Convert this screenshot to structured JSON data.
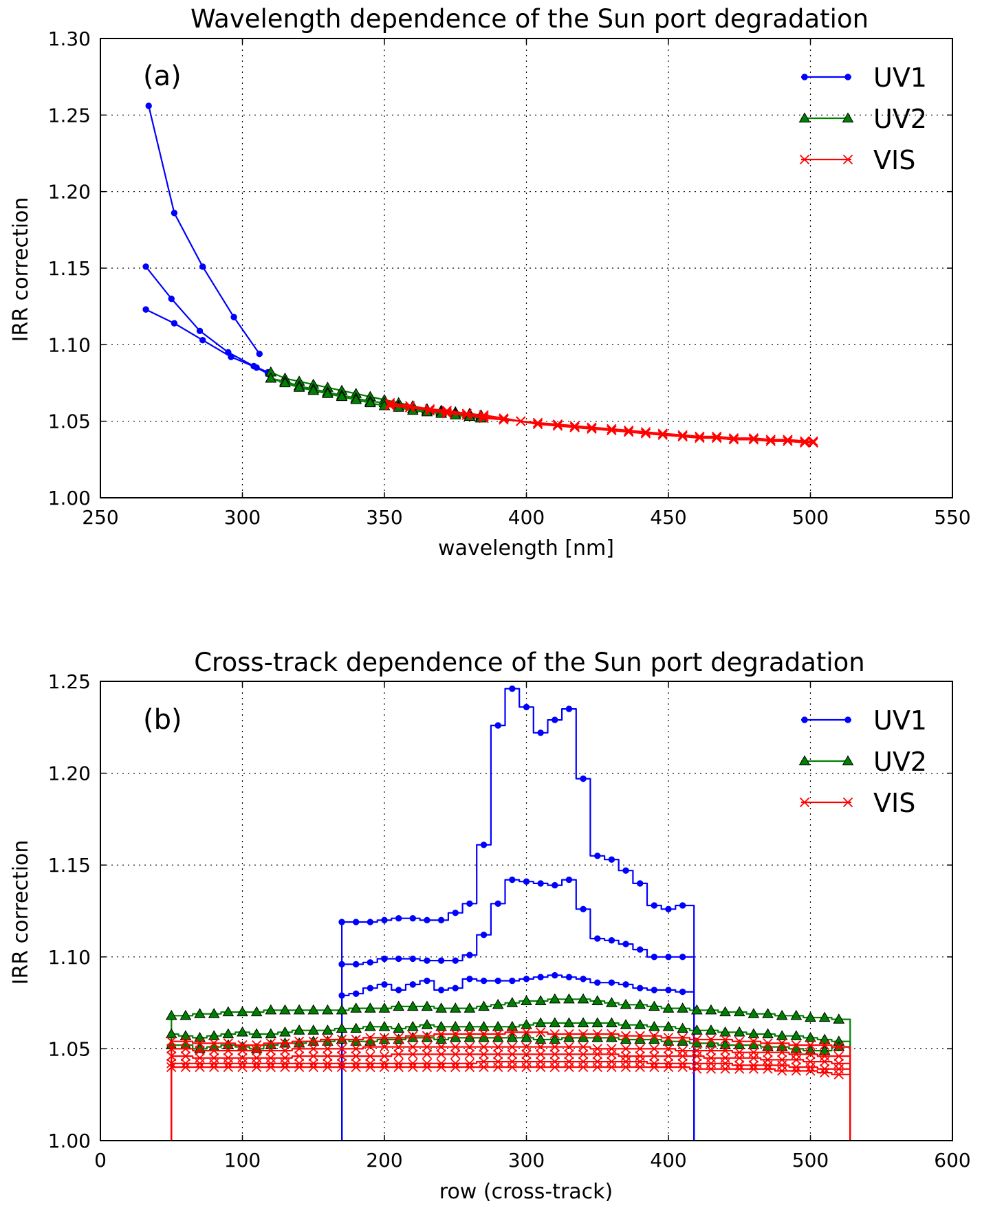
{
  "figure": {
    "colors": {
      "UV1": "#0000ff",
      "UV2": "#008000",
      "VIS": "#ff0000"
    }
  },
  "chart_data": [
    {
      "type": "line",
      "panel_label": "(a)",
      "title": "Wavelength dependence of the Sun port degradation",
      "xlabel": "wavelength [nm]",
      "ylabel": "IRR correction",
      "xlim": [
        250,
        550
      ],
      "ylim": [
        1.0,
        1.3
      ],
      "xticks": [
        "250",
        "300",
        "350",
        "400",
        "450",
        "500",
        "550"
      ],
      "yticks": [
        "1.00",
        "1.05",
        "1.10",
        "1.15",
        "1.20",
        "1.25",
        "1.30"
      ],
      "grid": true,
      "legend_position": "top-right",
      "legend": [
        "UV1",
        "UV2",
        "VIS"
      ],
      "series": [
        {
          "name": "UV1",
          "marker": "dot",
          "x": [
            267,
            276,
            286,
            297,
            306
          ],
          "y": [
            1.256,
            1.186,
            1.151,
            1.118,
            1.094
          ]
        },
        {
          "name": "UV1",
          "marker": "dot",
          "x": [
            266,
            275,
            285,
            295,
            304,
            309
          ],
          "y": [
            1.151,
            1.13,
            1.109,
            1.095,
            1.086,
            1.082
          ]
        },
        {
          "name": "UV1",
          "marker": "dot",
          "x": [
            266,
            276,
            286,
            296,
            305,
            309
          ],
          "y": [
            1.123,
            1.114,
            1.103,
            1.092,
            1.085,
            1.081
          ]
        },
        {
          "name": "UV2",
          "marker": "triangle",
          "x": [
            310,
            315,
            320,
            325,
            330,
            335,
            340,
            345,
            350,
            355,
            360,
            365,
            370,
            375,
            380,
            384
          ],
          "y": [
            1.082,
            1.078,
            1.076,
            1.074,
            1.072,
            1.07,
            1.068,
            1.066,
            1.064,
            1.062,
            1.06,
            1.058,
            1.057,
            1.056,
            1.055,
            1.054
          ]
        },
        {
          "name": "UV2",
          "marker": "triangle",
          "x": [
            310,
            315,
            320,
            325,
            330,
            335,
            340,
            345,
            350,
            355,
            360,
            365,
            370,
            375,
            380,
            384
          ],
          "y": [
            1.078,
            1.076,
            1.073,
            1.071,
            1.069,
            1.067,
            1.065,
            1.063,
            1.062,
            1.06,
            1.058,
            1.057,
            1.056,
            1.055,
            1.054,
            1.053
          ]
        },
        {
          "name": "UV2",
          "marker": "triangle",
          "x": [
            310,
            315,
            320,
            325,
            330,
            335,
            340,
            345,
            350,
            355,
            360,
            365,
            370,
            375,
            380,
            384
          ],
          "y": [
            1.078,
            1.075,
            1.072,
            1.07,
            1.068,
            1.066,
            1.064,
            1.062,
            1.06,
            1.059,
            1.057,
            1.056,
            1.055,
            1.054,
            1.053,
            1.052
          ]
        },
        {
          "name": "VIS",
          "marker": "x",
          "x": [
            352,
            359,
            366,
            372,
            379,
            385,
            392,
            398,
            404,
            411,
            417,
            423,
            430,
            436,
            442,
            448,
            455,
            461,
            467,
            473,
            480,
            486,
            492,
            498,
            501
          ],
          "y": [
            1.062,
            1.06,
            1.058,
            1.057,
            1.055,
            1.054,
            1.052,
            1.05,
            1.049,
            1.048,
            1.047,
            1.046,
            1.045,
            1.044,
            1.043,
            1.042,
            1.041,
            1.04,
            1.04,
            1.039,
            1.039,
            1.038,
            1.038,
            1.037,
            1.037
          ]
        },
        {
          "name": "VIS",
          "marker": "x",
          "x": [
            352,
            359,
            366,
            372,
            379,
            385,
            392,
            398,
            404,
            411,
            417,
            423,
            430,
            436,
            442,
            448,
            455,
            461,
            467,
            473,
            480,
            486,
            492,
            498,
            501
          ],
          "y": [
            1.06,
            1.059,
            1.057,
            1.055,
            1.054,
            1.052,
            1.051,
            1.05,
            1.048,
            1.047,
            1.046,
            1.045,
            1.044,
            1.043,
            1.042,
            1.041,
            1.04,
            1.039,
            1.039,
            1.038,
            1.038,
            1.037,
            1.037,
            1.036,
            1.036
          ]
        },
        {
          "name": "VIS",
          "marker": "x",
          "x": [
            352,
            359,
            366,
            372,
            379,
            385,
            392,
            398,
            404,
            411,
            417,
            423,
            430,
            436,
            442,
            448,
            455,
            461,
            467,
            473,
            480,
            486,
            492,
            498,
            501
          ],
          "y": [
            1.061,
            1.059,
            1.057,
            1.056,
            1.054,
            1.053,
            1.051,
            1.05,
            1.049,
            1.047,
            1.046,
            1.045,
            1.044,
            1.043,
            1.042,
            1.041,
            1.04,
            1.04,
            1.039,
            1.038,
            1.038,
            1.037,
            1.037,
            1.036,
            1.036
          ]
        }
      ]
    },
    {
      "type": "line",
      "panel_label": "(b)",
      "title": "Cross-track dependence of the Sun port degradation",
      "xlabel": "row (cross-track)",
      "ylabel": "IRR correction",
      "xlim": [
        0,
        600
      ],
      "ylim": [
        1.0,
        1.25
      ],
      "xticks": [
        "0",
        "100",
        "200",
        "300",
        "400",
        "500",
        "600"
      ],
      "yticks": [
        "1.00",
        "1.05",
        "1.10",
        "1.15",
        "1.20",
        "1.25"
      ],
      "grid": true,
      "legend_position": "top-right",
      "legend": [
        "UV1",
        "UV2",
        "VIS"
      ],
      "series": [
        {
          "name": "UV1",
          "marker": "dot",
          "x_start": 170,
          "x_step": 10,
          "y": [
            1.119,
            1.119,
            1.119,
            1.12,
            1.121,
            1.121,
            1.12,
            1.12,
            1.124,
            1.129,
            1.161,
            1.226,
            1.246,
            1.236,
            1.222,
            1.229,
            1.235,
            1.197,
            1.155,
            1.153,
            1.147,
            1.14,
            1.128,
            1.126,
            1.128
          ]
        },
        {
          "name": "UV1",
          "marker": "dot",
          "x_start": 170,
          "x_step": 10,
          "y": [
            1.096,
            1.096,
            1.097,
            1.099,
            1.099,
            1.099,
            1.098,
            1.098,
            1.098,
            1.101,
            1.112,
            1.129,
            1.142,
            1.141,
            1.14,
            1.139,
            1.142,
            1.126,
            1.11,
            1.109,
            1.107,
            1.104,
            1.1,
            1.1,
            1.1
          ]
        },
        {
          "name": "UV1",
          "marker": "dot",
          "x_start": 170,
          "x_step": 10,
          "y": [
            1.079,
            1.08,
            1.083,
            1.085,
            1.082,
            1.085,
            1.087,
            1.082,
            1.083,
            1.088,
            1.087,
            1.087,
            1.087,
            1.088,
            1.089,
            1.09,
            1.089,
            1.088,
            1.086,
            1.086,
            1.085,
            1.083,
            1.082,
            1.082,
            1.081
          ]
        },
        {
          "name": "UV2",
          "marker": "triangle",
          "x_start": 50,
          "x_step": 10,
          "y": [
            1.068,
            1.068,
            1.069,
            1.069,
            1.07,
            1.07,
            1.07,
            1.071,
            1.071,
            1.071,
            1.071,
            1.071,
            1.071,
            1.072,
            1.072,
            1.072,
            1.073,
            1.073,
            1.073,
            1.072,
            1.072,
            1.072,
            1.073,
            1.074,
            1.075,
            1.076,
            1.076,
            1.077,
            1.077,
            1.077,
            1.076,
            1.075,
            1.074,
            1.074,
            1.073,
            1.072,
            1.072,
            1.071,
            1.071,
            1.07,
            1.07,
            1.069,
            1.069,
            1.068,
            1.068,
            1.067,
            1.067,
            1.066
          ]
        },
        {
          "name": "UV2",
          "marker": "triangle",
          "x_start": 50,
          "x_step": 10,
          "y": [
            1.058,
            1.057,
            1.056,
            1.057,
            1.058,
            1.059,
            1.058,
            1.058,
            1.059,
            1.06,
            1.06,
            1.06,
            1.061,
            1.061,
            1.062,
            1.062,
            1.061,
            1.062,
            1.063,
            1.062,
            1.062,
            1.062,
            1.062,
            1.062,
            1.062,
            1.063,
            1.064,
            1.064,
            1.064,
            1.064,
            1.064,
            1.064,
            1.063,
            1.063,
            1.062,
            1.062,
            1.061,
            1.06,
            1.06,
            1.059,
            1.059,
            1.058,
            1.058,
            1.057,
            1.057,
            1.056,
            1.055,
            1.054
          ]
        },
        {
          "name": "UV2",
          "marker": "triangle",
          "x_start": 50,
          "x_step": 10,
          "y": [
            1.052,
            1.052,
            1.05,
            1.051,
            1.052,
            1.051,
            1.05,
            1.052,
            1.053,
            1.053,
            1.054,
            1.054,
            1.055,
            1.054,
            1.054,
            1.055,
            1.055,
            1.056,
            1.056,
            1.055,
            1.056,
            1.056,
            1.056,
            1.056,
            1.056,
            1.056,
            1.055,
            1.055,
            1.056,
            1.056,
            1.056,
            1.056,
            1.055,
            1.055,
            1.055,
            1.054,
            1.054,
            1.053,
            1.053,
            1.052,
            1.052,
            1.052,
            1.051,
            1.051,
            1.05,
            1.049,
            1.049,
            1.051
          ]
        },
        {
          "name": "VIS",
          "marker": "x",
          "x_start": 50,
          "x_step": 10,
          "y": [
            1.054,
            1.054,
            1.053,
            1.053,
            1.053,
            1.052,
            1.052,
            1.053,
            1.053,
            1.054,
            1.054,
            1.055,
            1.055,
            1.055,
            1.056,
            1.056,
            1.056,
            1.057,
            1.057,
            1.058,
            1.058,
            1.058,
            1.058,
            1.058,
            1.059,
            1.059,
            1.059,
            1.058,
            1.058,
            1.058,
            1.058,
            1.058,
            1.057,
            1.057,
            1.057,
            1.056,
            1.056,
            1.055,
            1.055,
            1.055,
            1.054,
            1.054,
            1.053,
            1.053,
            1.052,
            1.052,
            1.052,
            1.051
          ]
        },
        {
          "name": "VIS",
          "marker": "x",
          "x_start": 50,
          "x_step": 10,
          "y": [
            1.05,
            1.05,
            1.049,
            1.049,
            1.049,
            1.049,
            1.049,
            1.049,
            1.049,
            1.05,
            1.05,
            1.05,
            1.05,
            1.05,
            1.051,
            1.051,
            1.051,
            1.051,
            1.051,
            1.051,
            1.051,
            1.051,
            1.051,
            1.051,
            1.051,
            1.051,
            1.051,
            1.051,
            1.051,
            1.051,
            1.05,
            1.05,
            1.05,
            1.05,
            1.05,
            1.05,
            1.049,
            1.049,
            1.049,
            1.049,
            1.048,
            1.048,
            1.048,
            1.048,
            1.047,
            1.047,
            1.046,
            1.046
          ]
        },
        {
          "name": "VIS",
          "marker": "x",
          "x_start": 50,
          "x_step": 10,
          "y": [
            1.046,
            1.046,
            1.045,
            1.045,
            1.045,
            1.045,
            1.045,
            1.045,
            1.045,
            1.046,
            1.046,
            1.046,
            1.046,
            1.046,
            1.046,
            1.046,
            1.047,
            1.047,
            1.047,
            1.047,
            1.047,
            1.047,
            1.047,
            1.047,
            1.047,
            1.047,
            1.047,
            1.047,
            1.047,
            1.047,
            1.047,
            1.047,
            1.046,
            1.046,
            1.046,
            1.046,
            1.046,
            1.046,
            1.045,
            1.045,
            1.045,
            1.045,
            1.044,
            1.044,
            1.044,
            1.043,
            1.043,
            1.042
          ]
        },
        {
          "name": "VIS",
          "marker": "x",
          "x_start": 50,
          "x_step": 10,
          "y": [
            1.042,
            1.042,
            1.042,
            1.042,
            1.042,
            1.042,
            1.042,
            1.042,
            1.042,
            1.042,
            1.042,
            1.042,
            1.042,
            1.042,
            1.042,
            1.042,
            1.042,
            1.042,
            1.042,
            1.042,
            1.042,
            1.042,
            1.043,
            1.043,
            1.043,
            1.043,
            1.043,
            1.043,
            1.043,
            1.043,
            1.043,
            1.043,
            1.043,
            1.043,
            1.042,
            1.042,
            1.042,
            1.042,
            1.042,
            1.042,
            1.041,
            1.041,
            1.041,
            1.041,
            1.04,
            1.04,
            1.039,
            1.039
          ]
        },
        {
          "name": "VIS",
          "marker": "x",
          "x_start": 50,
          "x_step": 10,
          "y": [
            1.04,
            1.04,
            1.04,
            1.04,
            1.04,
            1.04,
            1.04,
            1.04,
            1.04,
            1.04,
            1.04,
            1.04,
            1.04,
            1.04,
            1.04,
            1.04,
            1.04,
            1.04,
            1.04,
            1.04,
            1.04,
            1.04,
            1.04,
            1.04,
            1.04,
            1.04,
            1.04,
            1.04,
            1.04,
            1.04,
            1.04,
            1.04,
            1.04,
            1.04,
            1.04,
            1.04,
            1.04,
            1.039,
            1.039,
            1.039,
            1.039,
            1.039,
            1.039,
            1.038,
            1.038,
            1.038,
            1.037,
            1.036
          ]
        }
      ]
    }
  ]
}
